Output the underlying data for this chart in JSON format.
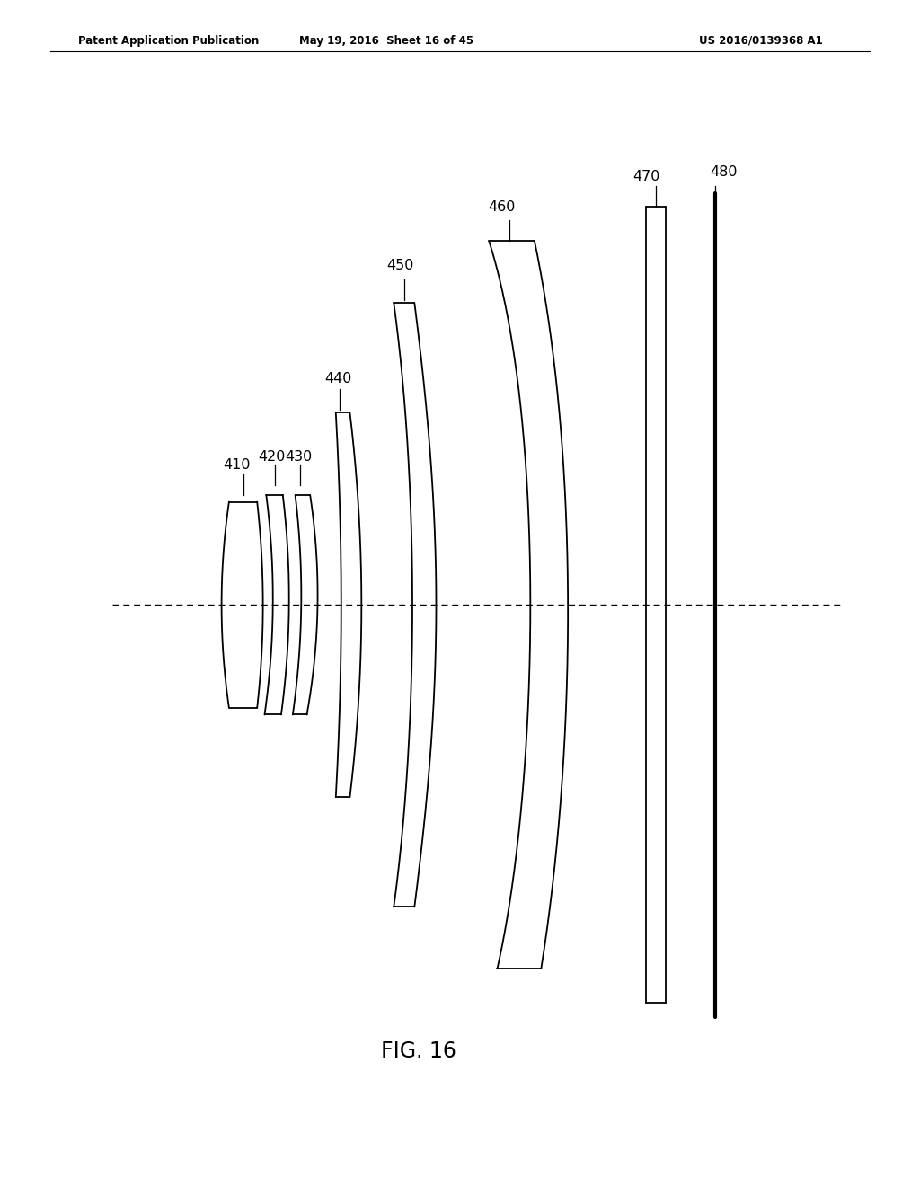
{
  "patent_header_left": "Patent Application Publication",
  "patent_header_mid": "May 19, 2016  Sheet 16 of 45",
  "patent_header_right": "US 2016/0139368 A1",
  "fig_label": "FIG. 16",
  "background_color": "#ffffff",
  "line_color": "#000000",
  "lw": 1.3,
  "xlim": [
    0,
    10
  ],
  "ylim": [
    -3.8,
    3.8
  ],
  "optical_axis_y": 0.0,
  "optical_axis_x0": 0.8,
  "optical_axis_x1": 9.6,
  "label_fontsize": 11.5,
  "fig_label_fontsize": 17,
  "header_fontsize": 8.5
}
